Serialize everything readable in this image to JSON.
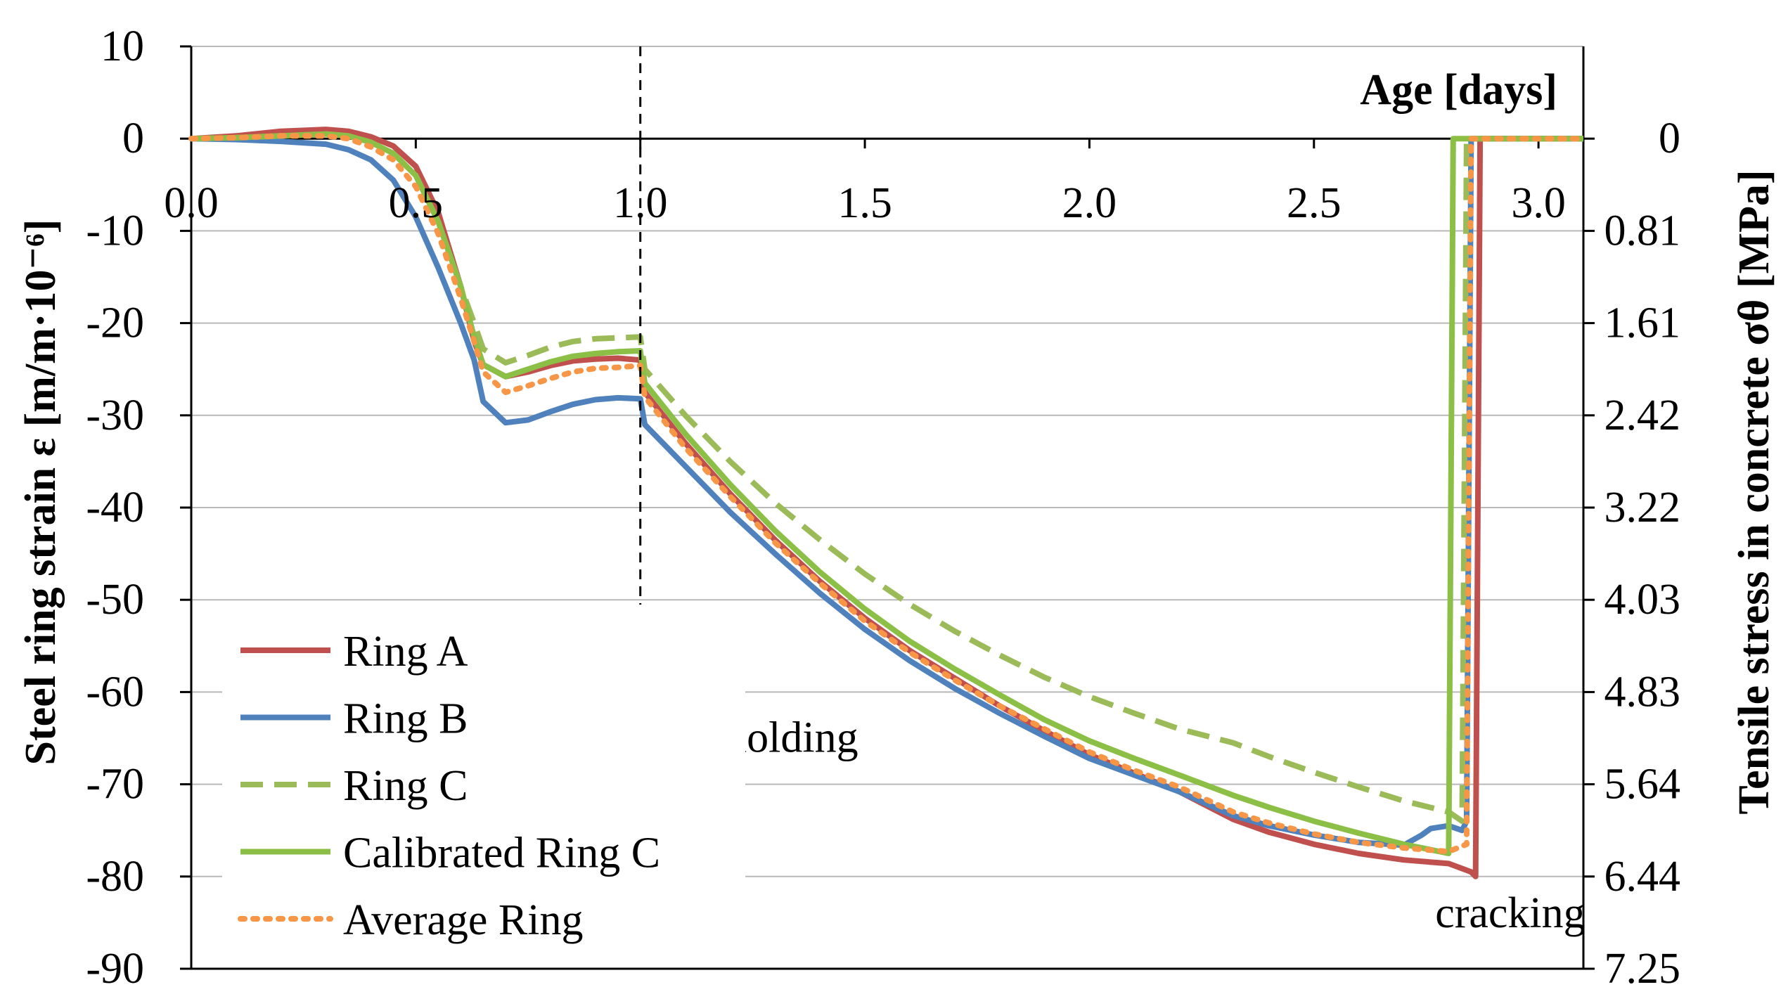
{
  "chart_data": {
    "type": "line",
    "title": "",
    "xlabel": "Age [days]",
    "ylabel": "Steel ring strain  ε [m/m·10⁻⁶]",
    "y2label": "Tensile stress in concrete  σθ [MPa]",
    "xlim": [
      0.0,
      3.1
    ],
    "ylim": [
      -90,
      10
    ],
    "x_ticks": [
      "0.0",
      "0.5",
      "1.0",
      "1.5",
      "2.0",
      "2.5",
      "3.0"
    ],
    "x_tick_values": [
      0.0,
      0.5,
      1.0,
      1.5,
      2.0,
      2.5,
      3.0
    ],
    "y_ticks": [
      "10",
      "0",
      "-10",
      "-20",
      "-30",
      "-40",
      "-50",
      "-60",
      "-70",
      "-80",
      "-90"
    ],
    "y_tick_values": [
      10,
      0,
      -10,
      -20,
      -30,
      -40,
      -50,
      -60,
      -70,
      -80,
      -90
    ],
    "y2_ticks": [
      "0",
      "0.81",
      "1.61",
      "2.42",
      "3.22",
      "4.03",
      "4.83",
      "5.64",
      "6.44",
      "7.25"
    ],
    "y2_tick_strain": [
      0,
      -10,
      -20,
      -30,
      -40,
      -50,
      -60,
      -70,
      -80,
      -90
    ],
    "grid": true,
    "legend_position": "bottom-left",
    "vline_x": 1.0,
    "annotations": [
      {
        "text": "demolding",
        "x": 1.07,
        "y": -66.5
      },
      {
        "text": "cracking",
        "x": 2.77,
        "y": -85.5
      }
    ],
    "series": [
      {
        "name": "Ring A",
        "color": "#c0504d",
        "dash": "solid",
        "x": [
          0,
          0.1,
          0.2,
          0.3,
          0.35,
          0.4,
          0.45,
          0.5,
          0.55,
          0.6,
          0.63,
          0.65,
          0.7,
          0.75,
          0.8,
          0.85,
          0.9,
          0.95,
          1.0,
          1.01,
          1.1,
          1.2,
          1.3,
          1.4,
          1.5,
          1.6,
          1.7,
          1.8,
          1.9,
          2.0,
          2.1,
          2.2,
          2.32,
          2.4,
          2.5,
          2.6,
          2.7,
          2.8,
          2.85,
          2.86,
          2.87,
          3.1
        ],
        "y": [
          0,
          0.3,
          0.8,
          1.0,
          0.8,
          0.2,
          -0.8,
          -3,
          -8,
          -16,
          -22,
          -24.5,
          -25.8,
          -25.3,
          -24.6,
          -24.1,
          -23.9,
          -23.8,
          -24,
          -27.5,
          -33,
          -38.5,
          -43.5,
          -48,
          -52,
          -55.5,
          -58.5,
          -61.5,
          -64.2,
          -66.8,
          -68.8,
          -70.8,
          -73.8,
          -75.2,
          -76.5,
          -77.5,
          -78.2,
          -78.6,
          -79.5,
          -80,
          0,
          0
        ]
      },
      {
        "name": "Ring B",
        "color": "#4f81bd",
        "dash": "solid",
        "x": [
          0,
          0.1,
          0.2,
          0.3,
          0.35,
          0.4,
          0.45,
          0.5,
          0.55,
          0.6,
          0.63,
          0.65,
          0.7,
          0.75,
          0.8,
          0.85,
          0.9,
          0.95,
          1.0,
          1.01,
          1.1,
          1.2,
          1.3,
          1.4,
          1.5,
          1.6,
          1.7,
          1.8,
          1.9,
          2.0,
          2.1,
          2.2,
          2.32,
          2.4,
          2.5,
          2.6,
          2.7,
          2.74,
          2.76,
          2.8,
          2.83,
          2.84,
          2.85,
          3.1
        ],
        "y": [
          0,
          -0.1,
          -0.3,
          -0.6,
          -1.2,
          -2.3,
          -4.5,
          -8.5,
          -14,
          -20,
          -24,
          -28.5,
          -30.8,
          -30.5,
          -29.6,
          -28.8,
          -28.3,
          -28.1,
          -28.2,
          -31,
          -35.5,
          -40.5,
          -45,
          -49.3,
          -53.2,
          -56.6,
          -59.6,
          -62.3,
          -64.8,
          -67.2,
          -69,
          -70.8,
          -73.4,
          -74.5,
          -75.5,
          -76.3,
          -76.6,
          -75.5,
          -74.8,
          -74.5,
          -75,
          -74,
          0,
          0
        ]
      },
      {
        "name": "Ring C",
        "color": "#9bbb59",
        "dash": "dashed",
        "x": [
          0,
          0.1,
          0.2,
          0.3,
          0.35,
          0.4,
          0.45,
          0.5,
          0.55,
          0.6,
          0.63,
          0.65,
          0.7,
          0.75,
          0.8,
          0.85,
          0.9,
          0.95,
          1.0,
          1.01,
          1.1,
          1.2,
          1.3,
          1.4,
          1.5,
          1.6,
          1.7,
          1.8,
          1.9,
          2.0,
          2.1,
          2.2,
          2.32,
          2.4,
          2.5,
          2.6,
          2.7,
          2.8,
          2.83,
          2.84,
          3.1
        ],
        "y": [
          0,
          0.1,
          0.3,
          0.5,
          0.3,
          -0.4,
          -1.6,
          -4,
          -9,
          -16,
          -20,
          -22.8,
          -24.3,
          -23.5,
          -22.6,
          -22,
          -21.7,
          -21.6,
          -21.5,
          -25,
          -30,
          -35,
          -39.5,
          -43.5,
          -47.2,
          -50.5,
          -53.4,
          -56,
          -58.4,
          -60.5,
          -62.3,
          -64,
          -65.5,
          -67,
          -68.7,
          -70.3,
          -71.8,
          -73,
          -74,
          0,
          0
        ]
      },
      {
        "name": "Calibrated Ring C",
        "color": "#8bbf45",
        "dash": "solid",
        "x": [
          0,
          0.1,
          0.2,
          0.3,
          0.35,
          0.4,
          0.45,
          0.5,
          0.55,
          0.6,
          0.63,
          0.65,
          0.7,
          0.75,
          0.8,
          0.85,
          0.9,
          0.95,
          1.0,
          1.01,
          1.1,
          1.2,
          1.3,
          1.4,
          1.5,
          1.6,
          1.7,
          1.8,
          1.9,
          2.0,
          2.1,
          2.2,
          2.32,
          2.4,
          2.5,
          2.6,
          2.7,
          2.75,
          2.8,
          2.81,
          3.1
        ],
        "y": [
          0,
          0.1,
          0.3,
          0.5,
          0.3,
          -0.4,
          -1.6,
          -4,
          -9,
          -16,
          -21.5,
          -24.5,
          -25.8,
          -25,
          -24.2,
          -23.6,
          -23.3,
          -23.1,
          -23,
          -26.5,
          -32,
          -37.5,
          -42.5,
          -47,
          -51,
          -54.5,
          -57.5,
          -60.3,
          -63,
          -65.3,
          -67.2,
          -69,
          -71.2,
          -72.5,
          -74,
          -75.3,
          -76.5,
          -77,
          -77.5,
          0,
          0
        ]
      },
      {
        "name": "Average Ring",
        "color": "#f79646",
        "dash": "dotted",
        "x": [
          0,
          0.1,
          0.2,
          0.3,
          0.35,
          0.4,
          0.45,
          0.5,
          0.55,
          0.6,
          0.63,
          0.65,
          0.7,
          0.75,
          0.8,
          0.85,
          0.9,
          0.95,
          1.0,
          1.01,
          1.1,
          1.2,
          1.3,
          1.4,
          1.5,
          1.6,
          1.7,
          1.8,
          1.9,
          2.0,
          2.1,
          2.2,
          2.32,
          2.4,
          2.5,
          2.6,
          2.7,
          2.8,
          2.84,
          2.85,
          3.1
        ],
        "y": [
          0,
          0.1,
          0.3,
          0.3,
          0.0,
          -0.9,
          -2.3,
          -5.2,
          -10.3,
          -17.3,
          -22,
          -25.3,
          -27.5,
          -26.8,
          -26,
          -25.3,
          -24.9,
          -24.8,
          -24.6,
          -28,
          -33.5,
          -38.8,
          -43.8,
          -48.2,
          -52.3,
          -55.7,
          -58.7,
          -61.5,
          -64,
          -66.5,
          -68.5,
          -70.3,
          -73,
          -74.2,
          -75.4,
          -76.3,
          -76.9,
          -77.3,
          -76.5,
          0,
          0
        ]
      }
    ]
  }
}
